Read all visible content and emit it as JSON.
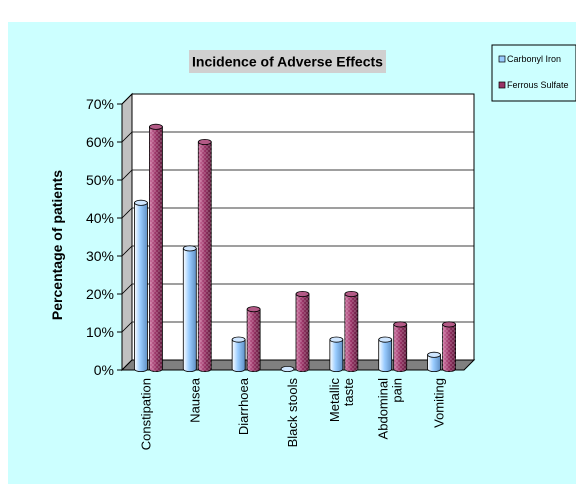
{
  "colors": {
    "background": "#ccffff",
    "wall": "#ffffff",
    "floor": "#808080",
    "title_box": "#d0d0d0",
    "series": [
      "#99ccff",
      "#993366"
    ]
  },
  "chart_data": {
    "type": "bar",
    "style": "3d-column",
    "title": "Incidence of Adverse Effects",
    "xlabel": "",
    "ylabel": "Percentage of patients",
    "ylim": [
      0,
      70
    ],
    "yticks": [
      0,
      10,
      20,
      30,
      40,
      50,
      60,
      70
    ],
    "ytick_labels": [
      "0%",
      "10%",
      "20%",
      "30%",
      "40%",
      "50%",
      "60%",
      "70%"
    ],
    "y_unit": "%",
    "grid": true,
    "legend_position": "top-right",
    "categories": [
      [
        "Constipation"
      ],
      [
        "Nausea"
      ],
      [
        "Diarrhoea"
      ],
      [
        "Black stools"
      ],
      [
        "Metallic",
        "taste"
      ],
      [
        "Abdominal",
        "pain"
      ],
      [
        "Vomiting"
      ]
    ],
    "series": [
      {
        "name": "Carbonyl Iron",
        "values": [
          44,
          32,
          8,
          0,
          8,
          8,
          4
        ]
      },
      {
        "name": "Ferrous Sulfate",
        "values": [
          64,
          60,
          16,
          20,
          20,
          12,
          12
        ]
      }
    ]
  }
}
